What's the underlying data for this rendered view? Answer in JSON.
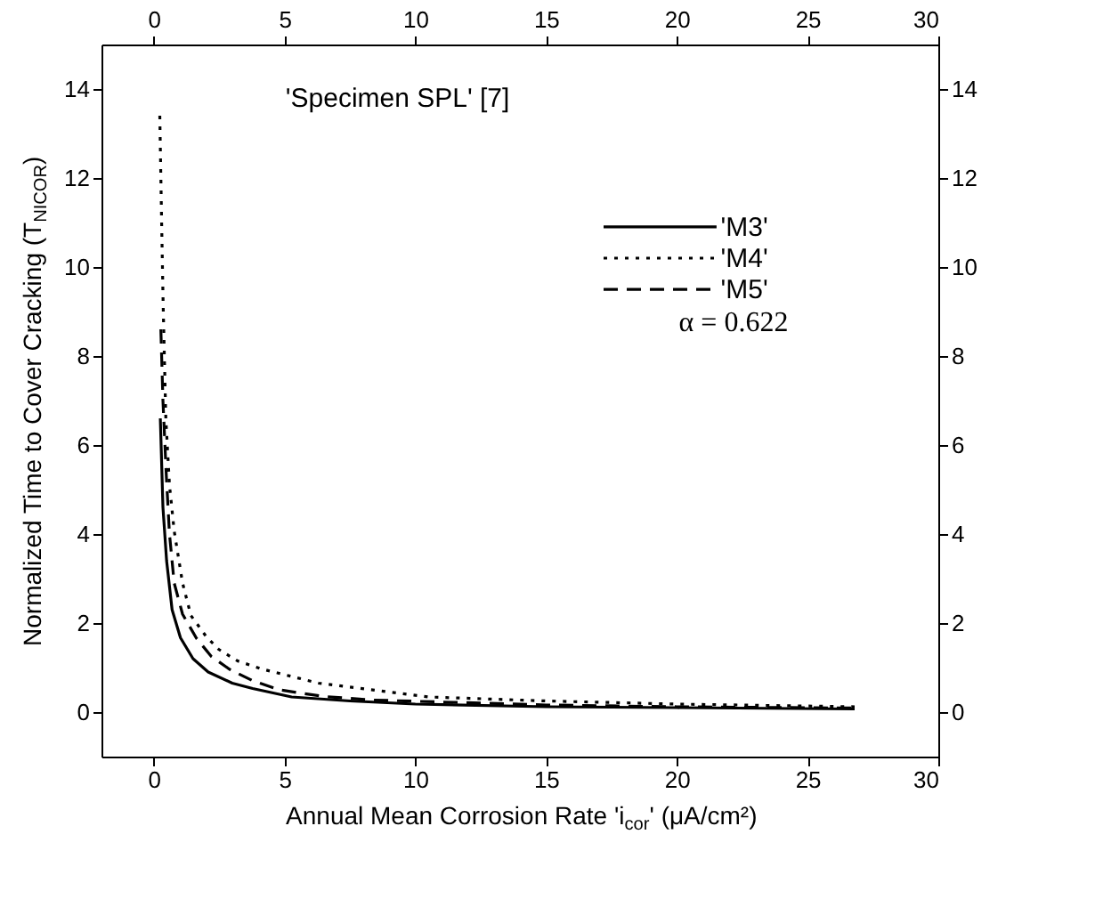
{
  "chart_data": {
    "type": "line",
    "xlabel": "Annual Mean Corrosion Rate 'i$_{cor}$' (μA/cm²)",
    "ylabel": "Normalized Time to Cover Cracking (T$_{NICOR}$)",
    "annotations": [
      "'Specimen SPL' [7]",
      "α = 0.622"
    ],
    "xlim": [
      -2,
      30
    ],
    "xticks": [
      0,
      5,
      10,
      15,
      20,
      25,
      30
    ],
    "x2lim": [
      -2,
      30
    ],
    "x2ticks": [
      0,
      5,
      10,
      15,
      20,
      25,
      30
    ],
    "ylim": [
      -1,
      15
    ],
    "yticks": [
      0,
      2,
      4,
      6,
      8,
      10,
      12,
      14
    ],
    "y2lim": [
      -1,
      15
    ],
    "y2ticks": [
      0,
      2,
      4,
      6,
      8,
      10,
      12,
      14
    ],
    "grid": false,
    "legend": "top right",
    "marker": "none",
    "series": [
      {
        "name": "'M3'",
        "color": "#000000",
        "line_style": "solid",
        "x": [
          0.25,
          0.35,
          0.49,
          0.7,
          1.02,
          1.5,
          2.08,
          3.0,
          3.78,
          5.27,
          7.5,
          10,
          15,
          20,
          26.8
        ],
        "values": [
          6.6,
          4.6,
          3.4,
          2.3,
          1.67,
          1.2,
          0.9,
          0.65,
          0.53,
          0.34,
          0.25,
          0.18,
          0.12,
          0.1,
          0.07
        ]
      },
      {
        "name": "'M4'",
        "color": "#000000",
        "line_style": "dotted",
        "x": [
          0.23,
          0.3,
          0.36,
          0.46,
          0.6,
          0.78,
          1.1,
          1.42,
          2.0,
          2.48,
          3.2,
          4.18,
          6.3,
          10.5,
          15,
          20,
          26.8
        ],
        "values": [
          13.4,
          11.0,
          9.1,
          6.6,
          5.1,
          4.07,
          2.9,
          2.17,
          1.7,
          1.41,
          1.15,
          0.96,
          0.65,
          0.34,
          0.25,
          0.18,
          0.12
        ]
      },
      {
        "name": "'M5'",
        "color": "#000000",
        "line_style": "dashed",
        "x": [
          0.27,
          0.35,
          0.48,
          0.6,
          0.78,
          1.1,
          1.63,
          2.2,
          2.9,
          3.8,
          4.8,
          6.5,
          8.4,
          15,
          20,
          26.8
        ],
        "values": [
          8.6,
          7.0,
          5.3,
          4.0,
          2.9,
          2.2,
          1.66,
          1.25,
          0.96,
          0.7,
          0.5,
          0.35,
          0.27,
          0.16,
          0.12,
          0.09
        ]
      }
    ]
  }
}
